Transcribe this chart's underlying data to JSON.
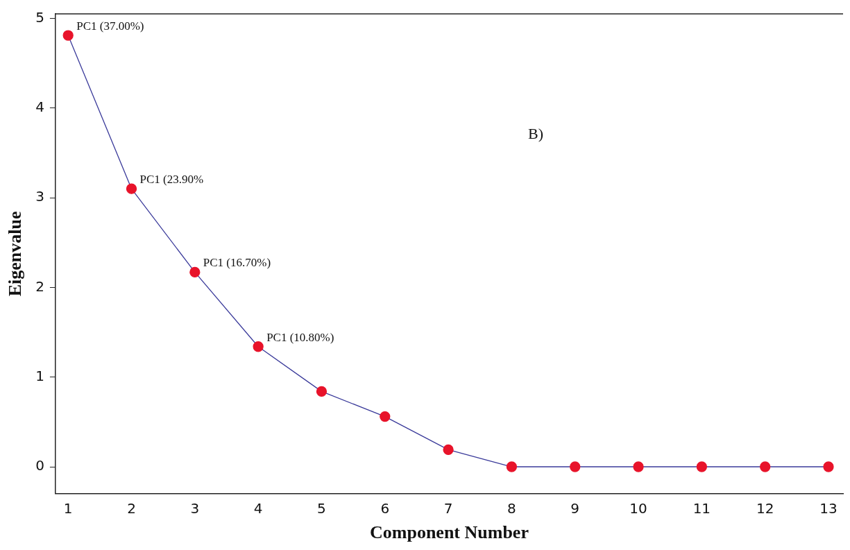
{
  "chart_data": {
    "type": "line",
    "xlabel": "Component Number",
    "ylabel": "Eigenvalue",
    "x": [
      1,
      2,
      3,
      4,
      5,
      6,
      7,
      8,
      9,
      10,
      11,
      12,
      13
    ],
    "series": [
      {
        "color": "#3a3a9a",
        "colors": [
          "#e8132a",
          "#e8132a",
          "#e8132a",
          "#e8132a",
          "#e8132a",
          "#e8132a",
          "#e8132a",
          "#e8132a",
          "#e8132a",
          "#e8132a",
          "#e8132a",
          "#e8132a",
          "#e8132a"
        ],
        "values": [
          4.81,
          3.1,
          2.17,
          1.34,
          0.84,
          0.56,
          0.19,
          0,
          0,
          0,
          0,
          0,
          0
        ]
      }
    ],
    "xlim": [
      0.8,
      13.23
    ],
    "xticks": [
      1,
      2,
      3,
      4,
      5,
      6,
      7,
      8,
      9,
      10,
      11,
      12,
      13
    ],
    "ylim": [
      -0.3,
      5.05
    ],
    "yticks": [
      0,
      1,
      2,
      3,
      4,
      5
    ],
    "marker": "circle",
    "grid": false,
    "legend": false,
    "annotations": [
      {
        "text": "PC1 (37.00%)",
        "x": 1,
        "y": 4.81
      },
      {
        "text": "PC1 (23.90%",
        "x": 2,
        "y": 3.1
      },
      {
        "text": "PC1 (16.70%)",
        "x": 3,
        "y": 2.17
      },
      {
        "text": "PC1 (10.80%)",
        "x": 4,
        "y": 1.34
      },
      "B)"
    ]
  }
}
